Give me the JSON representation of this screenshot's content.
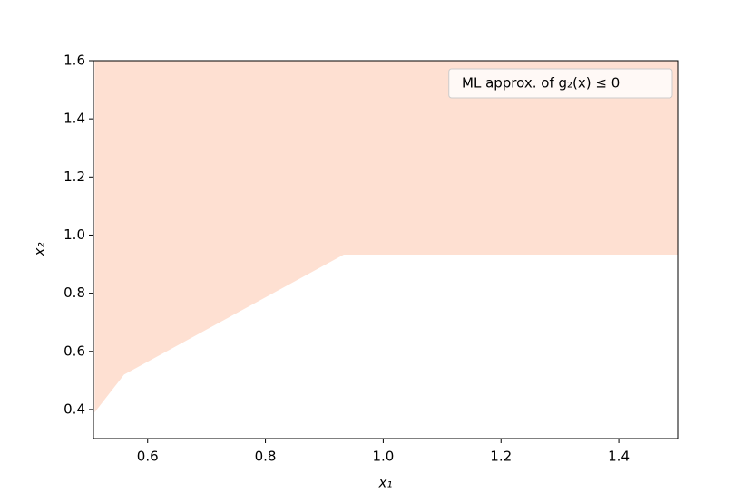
{
  "chart_data": {
    "type": "area",
    "x": [
      0.51,
      0.56,
      0.933,
      1.5
    ],
    "series": [
      {
        "name": "ML approx. of g₂(x) ≤ 0",
        "color": "#fee0d2",
        "values": [
          0.39,
          0.52,
          0.933,
          0.933
        ]
      }
    ],
    "fill_to": "top",
    "xlabel": "x₁",
    "ylabel": "x₂",
    "xlim": [
      0.508,
      1.5
    ],
    "ylim": [
      0.3,
      1.6
    ],
    "xticks": [
      0.6,
      0.8,
      {
        "value": 1,
        "label": "1.0"
      },
      1.2,
      1.4
    ],
    "yticks": [
      0.4,
      0.6,
      0.8,
      {
        "value": 1,
        "label": "1.0"
      },
      1.2,
      1.4,
      1.6
    ],
    "legend": "upper right"
  }
}
